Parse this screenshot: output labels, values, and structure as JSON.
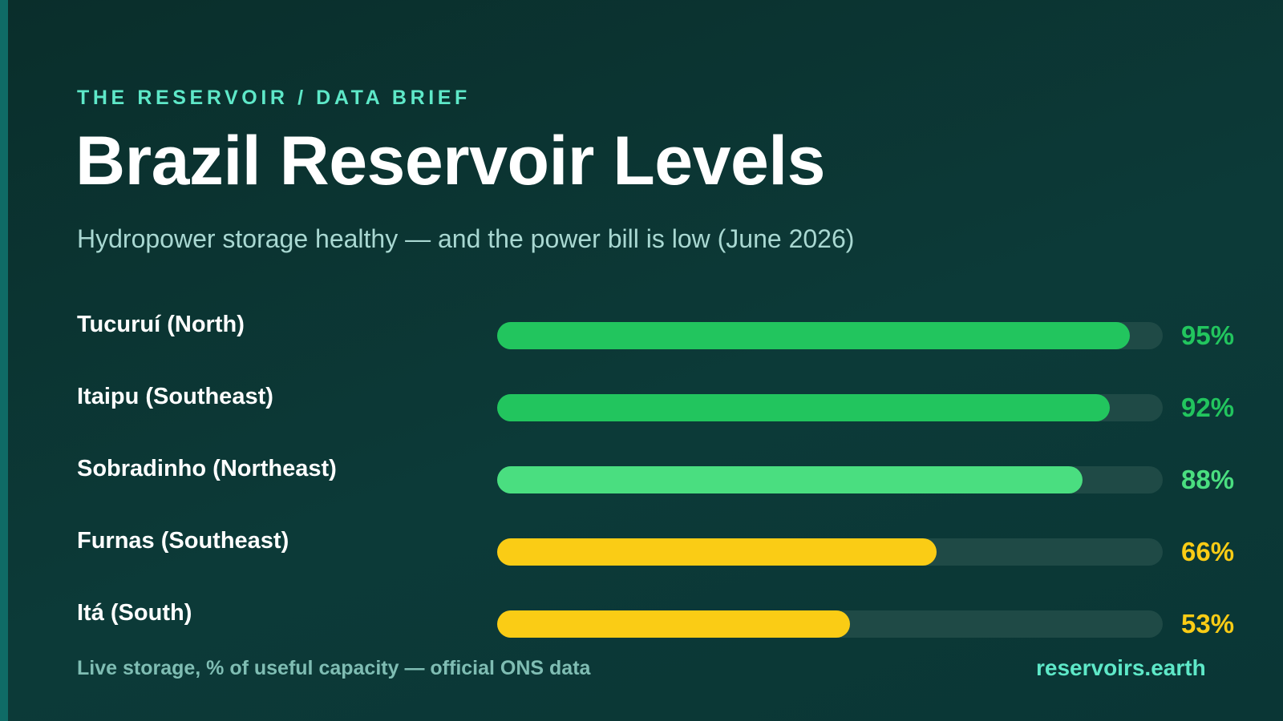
{
  "kicker": "THE RESERVOIR / DATA BRIEF",
  "title": "Brazil Reservoir Levels",
  "subtitle": "Hydropower storage healthy — and the power bill is low (June 2026)",
  "footnote": "Live storage, % of useful capacity — official ONS data",
  "brand": "reservoirs.earth",
  "colors": {
    "background": "#0b3331",
    "accent": "#5ee8c8",
    "track": "#1f4a46",
    "high": "#22c55e",
    "good": "#4ade80",
    "medium": "#facc15"
  },
  "chart_data": {
    "type": "bar",
    "orientation": "horizontal",
    "categories": [
      "Tucuruí (North)",
      "Itaipu (Southeast)",
      "Sobradinho (Northeast)",
      "Furnas (Southeast)",
      "Itá (South)"
    ],
    "values": [
      95,
      92,
      88,
      66,
      53
    ],
    "value_labels": [
      "95%",
      "92%",
      "88%",
      "66%",
      "53%"
    ],
    "bar_colors": [
      "#22c55e",
      "#22c55e",
      "#4ade80",
      "#facc15",
      "#facc15"
    ],
    "xlim": [
      0,
      100
    ],
    "grid": false
  }
}
